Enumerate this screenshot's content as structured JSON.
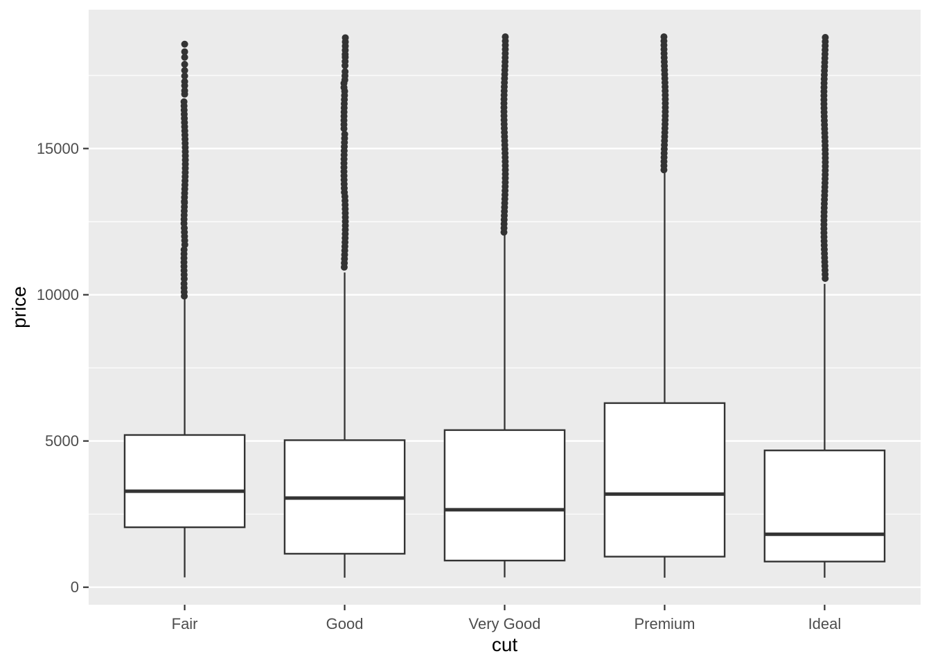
{
  "window": {
    "background": "#FFFFFF"
  },
  "chart_data": {
    "type": "boxplot",
    "title": "",
    "xlabel": "cut",
    "ylabel": "price",
    "categories": [
      "Fair",
      "Good",
      "Very Good",
      "Premium",
      "Ideal"
    ],
    "y_major_ticks": [
      0,
      5000,
      10000,
      15000
    ],
    "y_minor_ticks": [
      2500,
      7500,
      12500,
      17500
    ],
    "ylim": [
      -599,
      19748
    ],
    "box_width_fraction": 0.75,
    "grid": "major+minor horizontal, white on gray panel",
    "legend": "none",
    "series": [
      {
        "category": "Fair",
        "whisker_low": 337,
        "q1": 2050,
        "median": 3282,
        "q3": 5205,
        "whisker_high": 9947,
        "outlier_singles": [
          18570,
          18310,
          18120,
          17880,
          17670,
          17480,
          17290,
          17150,
          16980,
          16860
        ],
        "outlier_runs": [
          [
            16600,
            13180
          ],
          [
            13150,
            12330
          ],
          [
            12280,
            11570
          ],
          [
            11540,
            10450
          ],
          [
            10380,
            9950
          ]
        ]
      },
      {
        "category": "Good",
        "whisker_low": 327,
        "q1": 1145,
        "median": 3050,
        "q3": 5028,
        "whisker_high": 10761,
        "outlier_singles": [],
        "outlier_runs": [
          [
            18790,
            18200
          ],
          [
            18120,
            17720
          ],
          [
            17630,
            17320
          ],
          [
            17230,
            17060
          ],
          [
            16960,
            15590
          ],
          [
            15490,
            13460
          ],
          [
            13360,
            10810
          ]
        ]
      },
      {
        "category": "Very Good",
        "whisker_low": 336,
        "q1": 912,
        "median": 2648,
        "q3": 5373,
        "whisker_high": 12066,
        "outlier_singles": [],
        "outlier_runs": [
          [
            18820,
            12080
          ]
        ]
      },
      {
        "category": "Premium",
        "whisker_low": 326,
        "q1": 1046,
        "median": 3185,
        "q3": 6296,
        "whisker_high": 14160,
        "outlier_singles": [],
        "outlier_runs": [
          [
            18820,
            14180
          ]
        ]
      },
      {
        "category": "Ideal",
        "whisker_low": 326,
        "q1": 878,
        "median": 1810,
        "q3": 4678,
        "whisker_high": 10372,
        "outlier_singles": [],
        "outlier_runs": [
          [
            18800,
            10480
          ]
        ]
      }
    ],
    "style": {
      "panel_bg": "#EBEBEB",
      "grid_color": "#FFFFFF",
      "box_stroke": "#333333",
      "box_fill": "#FFFFFF",
      "median_color": "#333333",
      "whisker_color": "#333333",
      "outlier_color": "#333333",
      "tick_mark_color": "#333333",
      "tick_label_color": "#4D4D4D",
      "axis_title_color": "#000000"
    }
  }
}
